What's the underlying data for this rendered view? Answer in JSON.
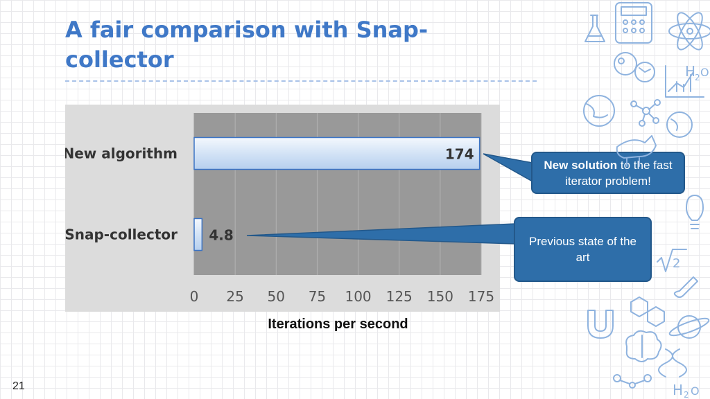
{
  "slide": {
    "title": "A fair comparison with Snap-collector",
    "page_number": "21"
  },
  "chart_data": {
    "type": "bar",
    "orientation": "horizontal",
    "categories": [
      "New algorithm",
      "Snap-collector"
    ],
    "values": [
      174,
      4.8
    ],
    "value_labels": [
      "174",
      "4.8"
    ],
    "xlabel": "Iterations per second",
    "ylabel": "",
    "xlim": [
      0,
      175
    ],
    "xticks": [
      0,
      25,
      50,
      75,
      100,
      125,
      150,
      175
    ],
    "grid": true
  },
  "callouts": [
    {
      "bold": "New solution",
      "text": " to the fast iterator problem!",
      "color": "#2e6ea9"
    },
    {
      "bold": "",
      "text": "Previous state of the art",
      "color": "#2e6ea9"
    }
  ],
  "colors": {
    "title": "#3f78c7",
    "plot_bg": "#999999",
    "bar": "#c7dcf5",
    "accent": "#2e6ea9"
  },
  "decoration": {
    "icons": [
      "calculator-icon",
      "flask-icon",
      "atom-icon",
      "microscope-icon",
      "graph-icon",
      "h2o-icon",
      "globe-icon",
      "molecule-icon",
      "dinosaur-icon",
      "lightbulb-icon",
      "sqrt-icon",
      "magnet-icon",
      "brain-icon",
      "dna-icon",
      "planet-icon"
    ]
  }
}
